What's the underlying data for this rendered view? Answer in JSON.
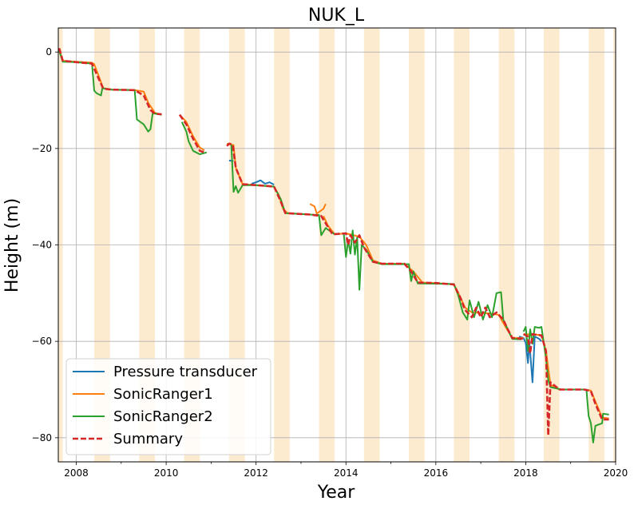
{
  "chart_data": {
    "type": "line",
    "title": "NUK_L",
    "xlabel": "Year",
    "ylabel": "Height (m)",
    "xlim": [
      2007.6,
      2020.0
    ],
    "ylim": [
      -85,
      5
    ],
    "xticks": [
      2008,
      2010,
      2012,
      2014,
      2016,
      2018,
      2020
    ],
    "xtick_labels": [
      "2008",
      "2010",
      "2012",
      "2014",
      "2016",
      "2018",
      "2020"
    ],
    "yticks": [
      0,
      -20,
      -40,
      -60,
      -80
    ],
    "ytick_labels": [
      "0",
      "−20",
      "−40",
      "−60",
      "−80"
    ],
    "grid": true,
    "legend_position": "lower-left",
    "summer_shading_color": "#fdebd0",
    "summer_bands": [
      [
        2007.6,
        2007.7
      ],
      [
        2008.4,
        2008.75
      ],
      [
        2009.4,
        2009.75
      ],
      [
        2010.4,
        2010.75
      ],
      [
        2011.4,
        2011.75
      ],
      [
        2012.4,
        2012.75
      ],
      [
        2013.4,
        2013.75
      ],
      [
        2014.4,
        2014.75
      ],
      [
        2015.4,
        2015.75
      ],
      [
        2016.4,
        2016.75
      ],
      [
        2017.4,
        2017.75
      ],
      [
        2018.4,
        2018.75
      ],
      [
        2019.4,
        2019.75
      ],
      [
        2019.95,
        2020.0
      ]
    ],
    "series": [
      {
        "name": "Pressure transducer",
        "color": "#1f77b4",
        "dashed": false,
        "segments": [
          [
            [
              2011.4,
              -22.5
            ],
            [
              2011.5,
              -22.6
            ]
          ],
          [
            [
              2011.9,
              -27.3
            ],
            [
              2012.0,
              -27.0
            ],
            [
              2012.1,
              -26.6
            ],
            [
              2012.2,
              -27.3
            ],
            [
              2012.3,
              -27.0
            ],
            [
              2012.4,
              -27.5
            ]
          ],
          [
            [
              2017.85,
              -59.0
            ],
            [
              2017.95,
              -59.3
            ],
            [
              2018.0,
              -60.3
            ],
            [
              2018.05,
              -64.5
            ],
            [
              2018.08,
              -60.0
            ],
            [
              2018.15,
              -68.5
            ],
            [
              2018.2,
              -59.0
            ],
            [
              2018.3,
              -59.5
            ],
            [
              2018.35,
              -60.0
            ]
          ]
        ]
      },
      {
        "name": "SonicRanger1",
        "color": "#ff7f0e",
        "dashed": false,
        "segments": [
          [
            [
              2007.62,
              0.5
            ],
            [
              2007.7,
              -1.8
            ],
            [
              2008.0,
              -2.0
            ],
            [
              2008.35,
              -2.2
            ],
            [
              2008.4,
              -2.5
            ],
            [
              2008.5,
              -5.0
            ],
            [
              2008.6,
              -7.5
            ],
            [
              2008.8,
              -7.8
            ],
            [
              2009.3,
              -7.9
            ],
            [
              2009.5,
              -8.2
            ],
            [
              2009.6,
              -10.5
            ],
            [
              2009.75,
              -12.6
            ],
            [
              2009.9,
              -13.0
            ]
          ],
          [
            [
              2010.3,
              -13.0
            ],
            [
              2010.45,
              -14.5
            ],
            [
              2010.6,
              -17.5
            ],
            [
              2010.75,
              -19.8
            ],
            [
              2010.85,
              -20.4
            ]
          ],
          [
            [
              2011.35,
              -19.0
            ],
            [
              2011.5,
              -19.3
            ],
            [
              2011.55,
              -24.0
            ],
            [
              2011.7,
              -27.4
            ],
            [
              2012.0,
              -27.6
            ],
            [
              2012.4,
              -27.9
            ],
            [
              2012.5,
              -29.5
            ],
            [
              2012.6,
              -32.5
            ],
            [
              2012.7,
              -33.4
            ],
            [
              2013.2,
              -33.7
            ]
          ],
          [
            [
              2013.2,
              -31.5
            ],
            [
              2013.3,
              -32.0
            ],
            [
              2013.35,
              -33.5
            ],
            [
              2013.5,
              -32.5
            ],
            [
              2013.55,
              -31.5
            ]
          ],
          [
            [
              2013.5,
              -34.0
            ],
            [
              2013.6,
              -36.0
            ],
            [
              2013.75,
              -37.8
            ],
            [
              2014.0,
              -37.6
            ],
            [
              2014.3,
              -38.3
            ],
            [
              2014.45,
              -40.0
            ],
            [
              2014.6,
              -43.2
            ],
            [
              2014.8,
              -43.9
            ],
            [
              2015.3,
              -43.9
            ],
            [
              2015.5,
              -45.5
            ],
            [
              2015.7,
              -47.8
            ],
            [
              2016.0,
              -47.9
            ],
            [
              2016.4,
              -48.2
            ],
            [
              2016.5,
              -50.0
            ],
            [
              2016.65,
              -53.0
            ],
            [
              2016.8,
              -54.0
            ],
            [
              2017.2,
              -54.2
            ],
            [
              2017.4,
              -54.5
            ],
            [
              2017.55,
              -57.0
            ],
            [
              2017.7,
              -59.3
            ],
            [
              2017.95,
              -59.3
            ]
          ],
          [
            [
              2017.95,
              -58.5
            ],
            [
              2018.35,
              -58.7
            ],
            [
              2018.45,
              -62.0
            ],
            [
              2018.55,
              -69.0
            ],
            [
              2018.75,
              -70.0
            ],
            [
              2019.3,
              -70.0
            ],
            [
              2019.45,
              -70.2
            ],
            [
              2019.55,
              -72.5
            ],
            [
              2019.7,
              -75.8
            ],
            [
              2019.85,
              -76.0
            ]
          ]
        ]
      },
      {
        "name": "SonicRanger2",
        "color": "#2ca02c",
        "dashed": false,
        "segments": [
          [
            [
              2007.62,
              0.3
            ],
            [
              2007.7,
              -2.0
            ],
            [
              2008.0,
              -2.1
            ],
            [
              2008.35,
              -2.4
            ],
            [
              2008.4,
              -8.0
            ],
            [
              2008.45,
              -8.5
            ],
            [
              2008.55,
              -9.0
            ],
            [
              2008.58,
              -7.5
            ],
            [
              2008.8,
              -7.8
            ],
            [
              2009.3,
              -7.9
            ],
            [
              2009.35,
              -14.0
            ],
            [
              2009.5,
              -15.0
            ],
            [
              2009.6,
              -16.5
            ],
            [
              2009.65,
              -16.0
            ],
            [
              2009.7,
              -12.7
            ],
            [
              2009.9,
              -13.0
            ]
          ],
          [
            [
              2010.35,
              -14.5
            ],
            [
              2010.45,
              -16.5
            ],
            [
              2010.5,
              -18.5
            ],
            [
              2010.6,
              -20.5
            ],
            [
              2010.75,
              -21.2
            ],
            [
              2010.9,
              -20.8
            ]
          ],
          [
            [
              2011.45,
              -19.2
            ],
            [
              2011.5,
              -29.0
            ],
            [
              2011.55,
              -27.8
            ],
            [
              2011.6,
              -29.2
            ],
            [
              2011.7,
              -27.6
            ],
            [
              2012.0,
              -27.6
            ],
            [
              2012.4,
              -27.9
            ],
            [
              2012.55,
              -30.5
            ],
            [
              2012.65,
              -33.4
            ],
            [
              2013.2,
              -33.7
            ],
            [
              2013.4,
              -33.8
            ],
            [
              2013.45,
              -38.0
            ],
            [
              2013.55,
              -36.5
            ],
            [
              2013.75,
              -37.8
            ]
          ],
          [
            [
              2013.95,
              -37.5
            ],
            [
              2014.0,
              -42.5
            ],
            [
              2014.05,
              -39.0
            ],
            [
              2014.1,
              -41.8
            ],
            [
              2014.15,
              -37.0
            ],
            [
              2014.2,
              -42.0
            ],
            [
              2014.25,
              -38.5
            ],
            [
              2014.3,
              -49.3
            ],
            [
              2014.35,
              -40.0
            ],
            [
              2014.45,
              -41.0
            ],
            [
              2014.6,
              -43.5
            ],
            [
              2014.8,
              -44.0
            ],
            [
              2015.4,
              -44.0
            ],
            [
              2015.45,
              -47.5
            ],
            [
              2015.5,
              -45.5
            ],
            [
              2015.6,
              -48.0
            ],
            [
              2016.4,
              -48.1
            ],
            [
              2016.5,
              -50.5
            ],
            [
              2016.6,
              -54.0
            ],
            [
              2016.7,
              -55.5
            ],
            [
              2016.75,
              -51.5
            ],
            [
              2016.85,
              -55.0
            ],
            [
              2016.95,
              -51.8
            ],
            [
              2017.05,
              -55.5
            ],
            [
              2017.15,
              -52.5
            ],
            [
              2017.25,
              -55.0
            ],
            [
              2017.35,
              -50.0
            ],
            [
              2017.45,
              -49.8
            ],
            [
              2017.5,
              -55.5
            ],
            [
              2017.6,
              -57.5
            ],
            [
              2017.7,
              -59.5
            ],
            [
              2017.9,
              -59.6
            ]
          ],
          [
            [
              2017.95,
              -58.0
            ],
            [
              2018.0,
              -57.0
            ],
            [
              2018.05,
              -62.0
            ],
            [
              2018.1,
              -57.5
            ],
            [
              2018.15,
              -60.5
            ],
            [
              2018.2,
              -57.0
            ],
            [
              2018.3,
              -57.2
            ],
            [
              2018.35,
              -57.0
            ],
            [
              2018.45,
              -63.5
            ],
            [
              2018.5,
              -68.0
            ],
            [
              2018.55,
              -69.5
            ],
            [
              2018.8,
              -70.0
            ],
            [
              2019.35,
              -70.0
            ],
            [
              2019.4,
              -75.5
            ],
            [
              2019.45,
              -77.0
            ],
            [
              2019.5,
              -81.0
            ],
            [
              2019.55,
              -77.5
            ],
            [
              2019.7,
              -77.0
            ],
            [
              2019.72,
              -75.0
            ],
            [
              2019.85,
              -75.2
            ]
          ]
        ]
      },
      {
        "name": "Summary",
        "color": "#d62728",
        "dashed": true,
        "segments": [
          [
            [
              2007.62,
              0.8
            ],
            [
              2007.7,
              -1.8
            ],
            [
              2008.0,
              -2.1
            ],
            [
              2008.35,
              -2.4
            ],
            [
              2008.45,
              -4.5
            ],
            [
              2008.6,
              -7.6
            ],
            [
              2008.8,
              -7.8
            ],
            [
              2009.3,
              -7.9
            ],
            [
              2009.5,
              -9.0
            ],
            [
              2009.65,
              -12.0
            ],
            [
              2009.75,
              -12.8
            ],
            [
              2009.9,
              -12.9
            ]
          ],
          [
            [
              2010.3,
              -13.0
            ],
            [
              2010.45,
              -15.0
            ],
            [
              2010.6,
              -18.0
            ],
            [
              2010.75,
              -20.5
            ],
            [
              2010.85,
              -20.8
            ]
          ],
          [
            [
              2011.35,
              -19.5
            ],
            [
              2011.4,
              -19.0
            ],
            [
              2011.48,
              -19.2
            ],
            [
              2011.55,
              -24.0
            ],
            [
              2011.7,
              -27.4
            ],
            [
              2012.0,
              -27.6
            ],
            [
              2012.4,
              -27.9
            ],
            [
              2012.55,
              -31.0
            ],
            [
              2012.65,
              -33.4
            ],
            [
              2013.2,
              -33.7
            ],
            [
              2013.45,
              -34.0
            ],
            [
              2013.55,
              -35.5
            ],
            [
              2013.7,
              -37.8
            ],
            [
              2014.0,
              -37.6
            ],
            [
              2014.05,
              -40.0
            ],
            [
              2014.1,
              -38.0
            ],
            [
              2014.2,
              -39.5
            ],
            [
              2014.3,
              -38.0
            ],
            [
              2014.4,
              -40.5
            ],
            [
              2014.6,
              -43.5
            ],
            [
              2014.8,
              -43.9
            ],
            [
              2015.3,
              -43.9
            ],
            [
              2015.45,
              -45.5
            ],
            [
              2015.6,
              -47.8
            ],
            [
              2016.0,
              -47.9
            ],
            [
              2016.4,
              -48.2
            ],
            [
              2016.55,
              -51.0
            ],
            [
              2016.65,
              -53.5
            ],
            [
              2016.8,
              -55.0
            ],
            [
              2016.9,
              -53.0
            ],
            [
              2017.0,
              -55.0
            ],
            [
              2017.1,
              -53.0
            ],
            [
              2017.2,
              -55.0
            ],
            [
              2017.35,
              -54.0
            ],
            [
              2017.5,
              -55.5
            ],
            [
              2017.6,
              -57.5
            ],
            [
              2017.7,
              -59.3
            ],
            [
              2017.95,
              -59.5
            ]
          ],
          [
            [
              2017.95,
              -58.5
            ],
            [
              2018.05,
              -59.0
            ],
            [
              2018.1,
              -62.5
            ],
            [
              2018.15,
              -58.5
            ],
            [
              2018.35,
              -58.8
            ],
            [
              2018.45,
              -62.0
            ],
            [
              2018.5,
              -79.5
            ],
            [
              2018.55,
              -68.5
            ],
            [
              2018.75,
              -70.0
            ],
            [
              2019.3,
              -70.0
            ],
            [
              2019.45,
              -70.3
            ],
            [
              2019.55,
              -73.0
            ],
            [
              2019.7,
              -76.2
            ],
            [
              2019.85,
              -76.2
            ]
          ]
        ]
      }
    ]
  }
}
